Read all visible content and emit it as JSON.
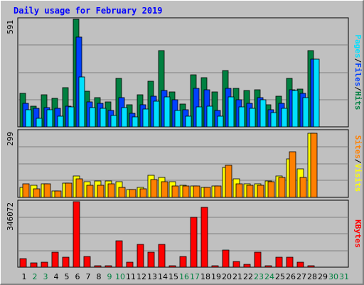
{
  "title": "Daily usage for February 2019",
  "colors": {
    "hits": "#008040",
    "files": "#0040ff",
    "pages": "#00e0ff",
    "visits": "#ffff00",
    "sites": "#ff8000",
    "kbytes": "#ff0000",
    "weekday": "#000000",
    "weekend": "#008040"
  },
  "chart_data": [
    {
      "type": "bar",
      "panel": "top",
      "ymax_label": "591",
      "ylim": [
        0,
        591
      ],
      "right_labels": [
        "Pages",
        "Files",
        "Hits"
      ],
      "categories": [
        "1",
        "2",
        "3",
        "4",
        "5",
        "6",
        "7",
        "8",
        "9",
        "10",
        "11",
        "12",
        "13",
        "14",
        "15",
        "16",
        "17",
        "18",
        "19",
        "20",
        "21",
        "22",
        "23",
        "24",
        "25",
        "26",
        "27",
        "28",
        "29",
        "30",
        "31"
      ],
      "series": [
        {
          "name": "Hits",
          "color": "#008040",
          "values": [
            185,
            112,
            175,
            155,
            215,
            591,
            195,
            160,
            137,
            265,
            120,
            175,
            250,
            418,
            190,
            125,
            285,
            272,
            190,
            310,
            210,
            200,
            205,
            120,
            170,
            267,
            207,
            420,
            0,
            0,
            0
          ]
        },
        {
          "name": "Files",
          "color": "#0040ff",
          "values": [
            130,
            100,
            105,
            100,
            115,
            495,
            138,
            128,
            90,
            160,
            75,
            120,
            170,
            200,
            150,
            92,
            210,
            202,
            90,
            210,
            147,
            130,
            160,
            95,
            130,
            205,
            185,
            370,
            0,
            0,
            0
          ]
        },
        {
          "name": "Pages",
          "color": "#00e0ff",
          "values": [
            92,
            47,
            93,
            60,
            110,
            275,
            106,
            102,
            62,
            107,
            55,
            97,
            140,
            165,
            90,
            60,
            110,
            115,
            60,
            165,
            110,
            100,
            150,
            80,
            100,
            200,
            160,
            370,
            0,
            0,
            0
          ]
        }
      ]
    },
    {
      "type": "bar",
      "panel": "middle",
      "ymax_label": "299",
      "ylim": [
        0,
        299
      ],
      "right_labels": [
        "Sites",
        "Visits"
      ],
      "categories": [
        "1",
        "2",
        "3",
        "4",
        "5",
        "6",
        "7",
        "8",
        "9",
        "10",
        "11",
        "12",
        "13",
        "14",
        "15",
        "16",
        "17",
        "18",
        "19",
        "20",
        "21",
        "22",
        "23",
        "24",
        "25",
        "26",
        "27",
        "28",
        "29",
        "30",
        "31"
      ],
      "series": [
        {
          "name": "Visits",
          "color": "#ffff00",
          "values": [
            45,
            55,
            60,
            30,
            65,
            95,
            70,
            75,
            75,
            70,
            35,
            45,
            100,
            90,
            70,
            55,
            50,
            45,
            50,
            135,
            85,
            60,
            60,
            75,
            95,
            175,
            130,
            290,
            0,
            0,
            0
          ]
        },
        {
          "name": "Sites",
          "color": "#ff8000",
          "values": [
            60,
            40,
            60,
            30,
            65,
            85,
            55,
            55,
            60,
            45,
            35,
            40,
            80,
            70,
            50,
            50,
            50,
            45,
            50,
            145,
            60,
            55,
            55,
            70,
            90,
            205,
            90,
            290,
            0,
            0,
            0
          ]
        }
      ]
    },
    {
      "type": "bar",
      "panel": "bottom",
      "ymax_label": "346072",
      "ylim": [
        0,
        346072
      ],
      "right_labels": [
        "KBytes"
      ],
      "categories": [
        "1",
        "2",
        "3",
        "4",
        "5",
        "6",
        "7",
        "8",
        "9",
        "10",
        "11",
        "12",
        "13",
        "14",
        "15",
        "16",
        "17",
        "18",
        "19",
        "20",
        "21",
        "22",
        "23",
        "24",
        "25",
        "26",
        "27",
        "28",
        "29",
        "30",
        "31"
      ],
      "series": [
        {
          "name": "KBytes",
          "color": "#ff0000",
          "values": [
            45000,
            22000,
            25000,
            78000,
            52000,
            346072,
            58000,
            6000,
            6000,
            138000,
            28000,
            122000,
            80000,
            122000,
            6000,
            58000,
            265000,
            316000,
            6000,
            90000,
            30000,
            14000,
            78000,
            6000,
            54000,
            52000,
            26000,
            8000,
            0,
            0,
            0
          ]
        }
      ]
    }
  ],
  "x_labels": [
    {
      "text": "1",
      "weekend": false
    },
    {
      "text": "2",
      "weekend": true
    },
    {
      "text": "3",
      "weekend": true
    },
    {
      "text": "4",
      "weekend": false
    },
    {
      "text": "5",
      "weekend": false
    },
    {
      "text": "6",
      "weekend": false
    },
    {
      "text": "7",
      "weekend": false
    },
    {
      "text": "8",
      "weekend": false
    },
    {
      "text": "9",
      "weekend": true
    },
    {
      "text": "10",
      "weekend": true
    },
    {
      "text": "11",
      "weekend": false
    },
    {
      "text": "12",
      "weekend": false
    },
    {
      "text": "13",
      "weekend": false
    },
    {
      "text": "14",
      "weekend": false
    },
    {
      "text": "15",
      "weekend": false
    },
    {
      "text": "16",
      "weekend": true
    },
    {
      "text": "17",
      "weekend": true
    },
    {
      "text": "18",
      "weekend": false
    },
    {
      "text": "19",
      "weekend": false
    },
    {
      "text": "20",
      "weekend": false
    },
    {
      "text": "21",
      "weekend": false
    },
    {
      "text": "22",
      "weekend": false
    },
    {
      "text": "23",
      "weekend": true
    },
    {
      "text": "24",
      "weekend": true
    },
    {
      "text": "25",
      "weekend": false
    },
    {
      "text": "26",
      "weekend": false
    },
    {
      "text": "27",
      "weekend": false
    },
    {
      "text": "28",
      "weekend": false
    },
    {
      "text": "29",
      "weekend": false
    },
    {
      "text": "30",
      "weekend": true
    },
    {
      "text": "31",
      "weekend": true
    }
  ]
}
